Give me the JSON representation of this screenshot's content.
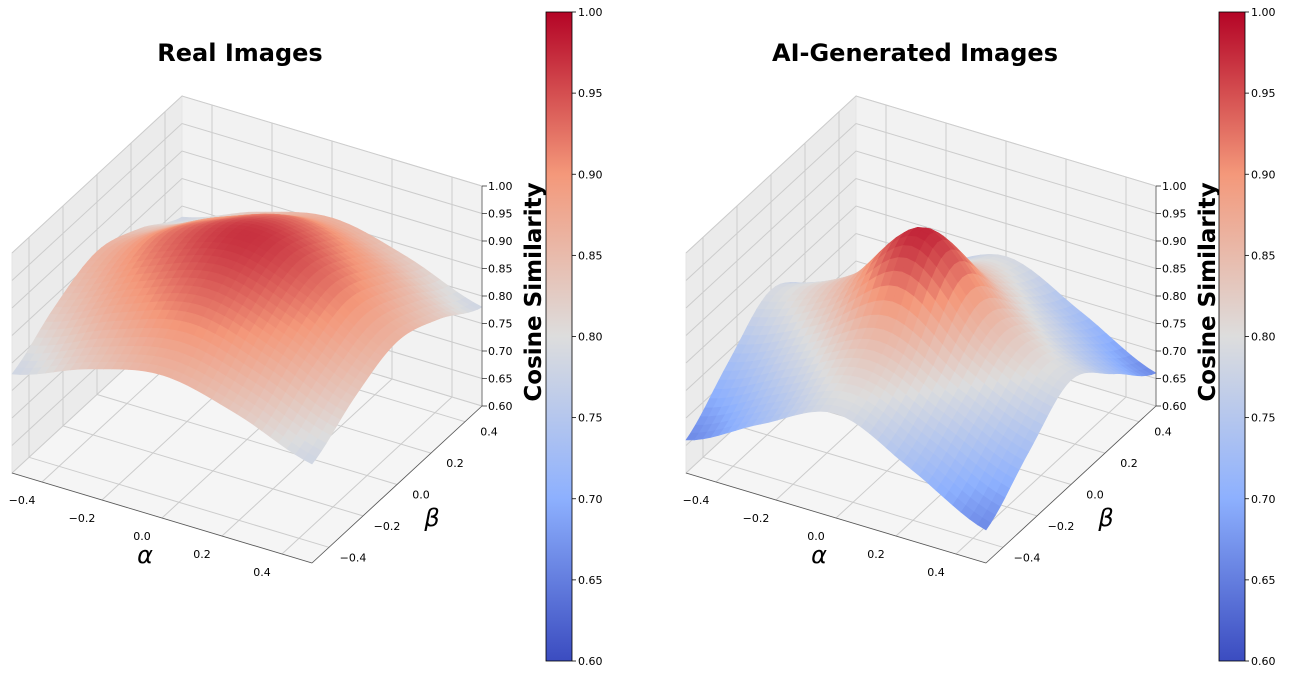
{
  "chart_data": [
    {
      "type": "surface3d",
      "title": "Real Images",
      "xlabel": "α",
      "ylabel": "β",
      "zlabel": "Cosine Similarity",
      "xlim": [
        -0.5,
        0.5
      ],
      "ylim": [
        -0.5,
        0.5
      ],
      "zlim": [
        0.6,
        1.0
      ],
      "x_ticks": [
        "−0.4",
        "−0.2",
        "0.0",
        "0.2",
        "0.4"
      ],
      "y_ticks": [
        "−0.4",
        "−0.2",
        "0.0",
        "0.2",
        "0.4"
      ],
      "z_ticks": [
        "0.60",
        "0.65",
        "0.70",
        "0.75",
        "0.80",
        "0.85",
        "0.90",
        "0.95",
        "1.00"
      ],
      "colormap": "coolwarm",
      "colorbar_range": [
        0.6,
        1.0
      ],
      "colorbar_ticks": [
        "0.60",
        "0.65",
        "0.70",
        "0.75",
        "0.80",
        "0.85",
        "0.90",
        "0.95",
        "1.00"
      ],
      "surface": {
        "grid_x": [
          -0.5,
          -0.25,
          0.0,
          0.25,
          0.5
        ],
        "grid_y": [
          -0.5,
          -0.25,
          0.0,
          0.25,
          0.5
        ],
        "z": [
          [
            0.78,
            0.83,
            0.86,
            0.83,
            0.78
          ],
          [
            0.83,
            0.89,
            0.93,
            0.89,
            0.83
          ],
          [
            0.86,
            0.93,
            0.97,
            0.93,
            0.86
          ],
          [
            0.83,
            0.89,
            0.93,
            0.89,
            0.83
          ],
          [
            0.78,
            0.83,
            0.86,
            0.83,
            0.78
          ]
        ]
      }
    },
    {
      "type": "surface3d",
      "title": "AI-Generated Images",
      "xlabel": "α",
      "ylabel": "β",
      "zlabel": "Cosine Similarity",
      "xlim": [
        -0.5,
        0.5
      ],
      "ylim": [
        -0.5,
        0.5
      ],
      "zlim": [
        0.6,
        1.0
      ],
      "x_ticks": [
        "−0.4",
        "−0.2",
        "0.0",
        "0.2",
        "0.4"
      ],
      "y_ticks": [
        "−0.4",
        "−0.2",
        "0.0",
        "0.2",
        "0.4"
      ],
      "z_ticks": [
        "0.60",
        "0.65",
        "0.70",
        "0.75",
        "0.80",
        "0.85",
        "0.90",
        "0.95",
        "1.00"
      ],
      "colormap": "coolwarm",
      "colorbar_range": [
        0.6,
        1.0
      ],
      "colorbar_ticks": [
        "0.60",
        "0.65",
        "0.70",
        "0.75",
        "0.80",
        "0.85",
        "0.90",
        "0.95",
        "1.00"
      ],
      "surface": {
        "grid_x": [
          -0.5,
          -0.25,
          0.0,
          0.25,
          0.5
        ],
        "grid_y": [
          -0.5,
          -0.25,
          0.0,
          0.25,
          0.5
        ],
        "z": [
          [
            0.66,
            0.73,
            0.79,
            0.73,
            0.66
          ],
          [
            0.73,
            0.79,
            0.85,
            0.79,
            0.73
          ],
          [
            0.79,
            0.85,
            0.98,
            0.85,
            0.79
          ],
          [
            0.73,
            0.79,
            0.85,
            0.79,
            0.73
          ],
          [
            0.66,
            0.73,
            0.79,
            0.73,
            0.66
          ]
        ]
      }
    }
  ]
}
